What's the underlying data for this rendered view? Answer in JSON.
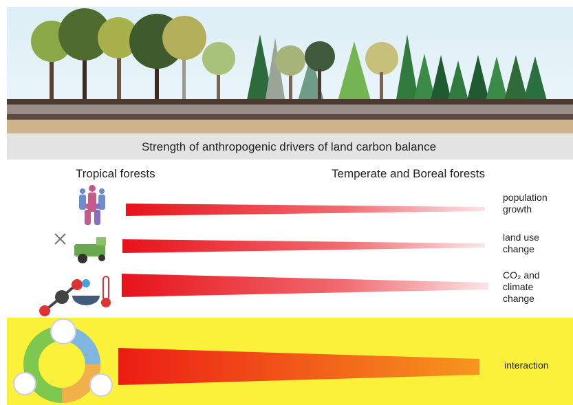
{
  "header": {
    "title": "Strength of anthropogenic drivers of land carbon balance"
  },
  "columns": {
    "left": "Tropical forests",
    "right": "Temperate and Boreal forests"
  },
  "drivers": [
    {
      "lines": [
        "population",
        "growth"
      ]
    },
    {
      "lines": [
        "land use",
        "change"
      ]
    },
    {
      "lines": [
        "CO₂ and",
        "climate",
        "change"
      ]
    },
    {
      "lines": [
        "interaction"
      ]
    }
  ]
}
